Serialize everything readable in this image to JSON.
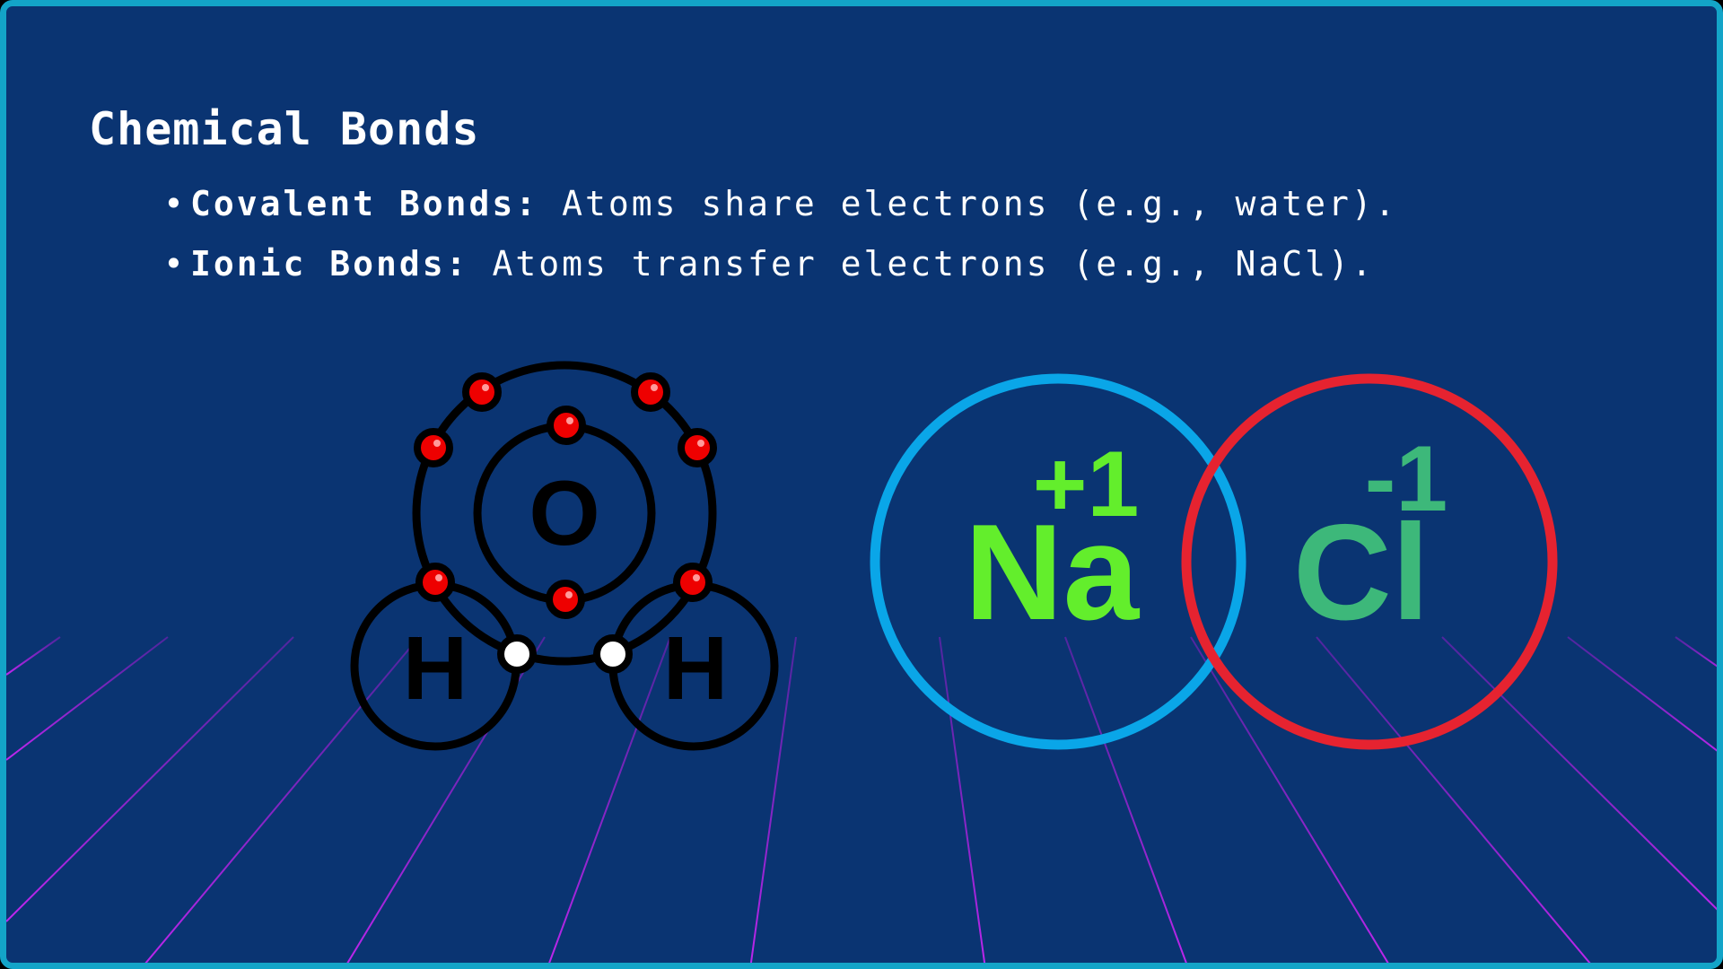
{
  "slide": {
    "title": "Chemical Bonds",
    "bullets": [
      {
        "term": "Covalent Bonds:",
        "text": "Atoms share electrons (e.g., water)."
      },
      {
        "term": "Ionic Bonds:",
        "text": "Atoms transfer electrons (e.g., NaCl)."
      }
    ]
  },
  "water_molecule": {
    "oxygen_label": "O",
    "hydrogen_left_label": "H",
    "hydrogen_right_label": "H"
  },
  "ionic_pair": {
    "sodium_label": "Na",
    "sodium_charge": "+1",
    "chlorine_label": "Cl",
    "chlorine_charge": "-1"
  },
  "colors": {
    "background": "#0a3472",
    "border": "#13a4c8",
    "grid": "#a21ed8",
    "electron": "#ee0000",
    "shared_electron": "#ffffff",
    "sodium_ring": "#0aa6e8",
    "sodium_text": "#63ee2c",
    "chlorine_ring": "#e62330",
    "chlorine_text": "#3db87a"
  }
}
